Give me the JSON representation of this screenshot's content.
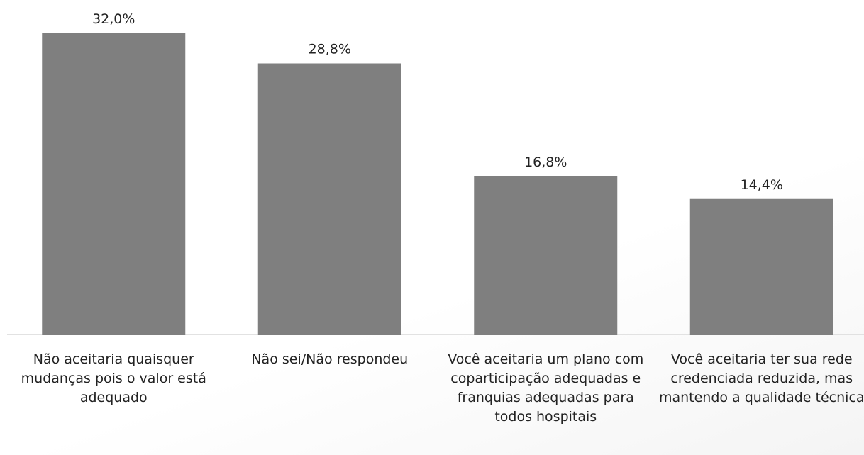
{
  "chart_data": {
    "type": "bar",
    "categories": [
      "Não aceitaria quaisquer mudanças pois o valor está adequado",
      "Não sei/Não respondeu",
      "Você aceitaria um plano com coparticipação adequadas e franquias adequadas para todos hospitais",
      "Você aceitaria ter sua rede credenciada reduzida, mas mantendo a qualidade técnica"
    ],
    "values": [
      32.0,
      28.8,
      16.8,
      14.4
    ],
    "value_labels": [
      "32,0%",
      "28,8%",
      "16,8%",
      "14,4%"
    ],
    "color": "#7f7f7f"
  }
}
